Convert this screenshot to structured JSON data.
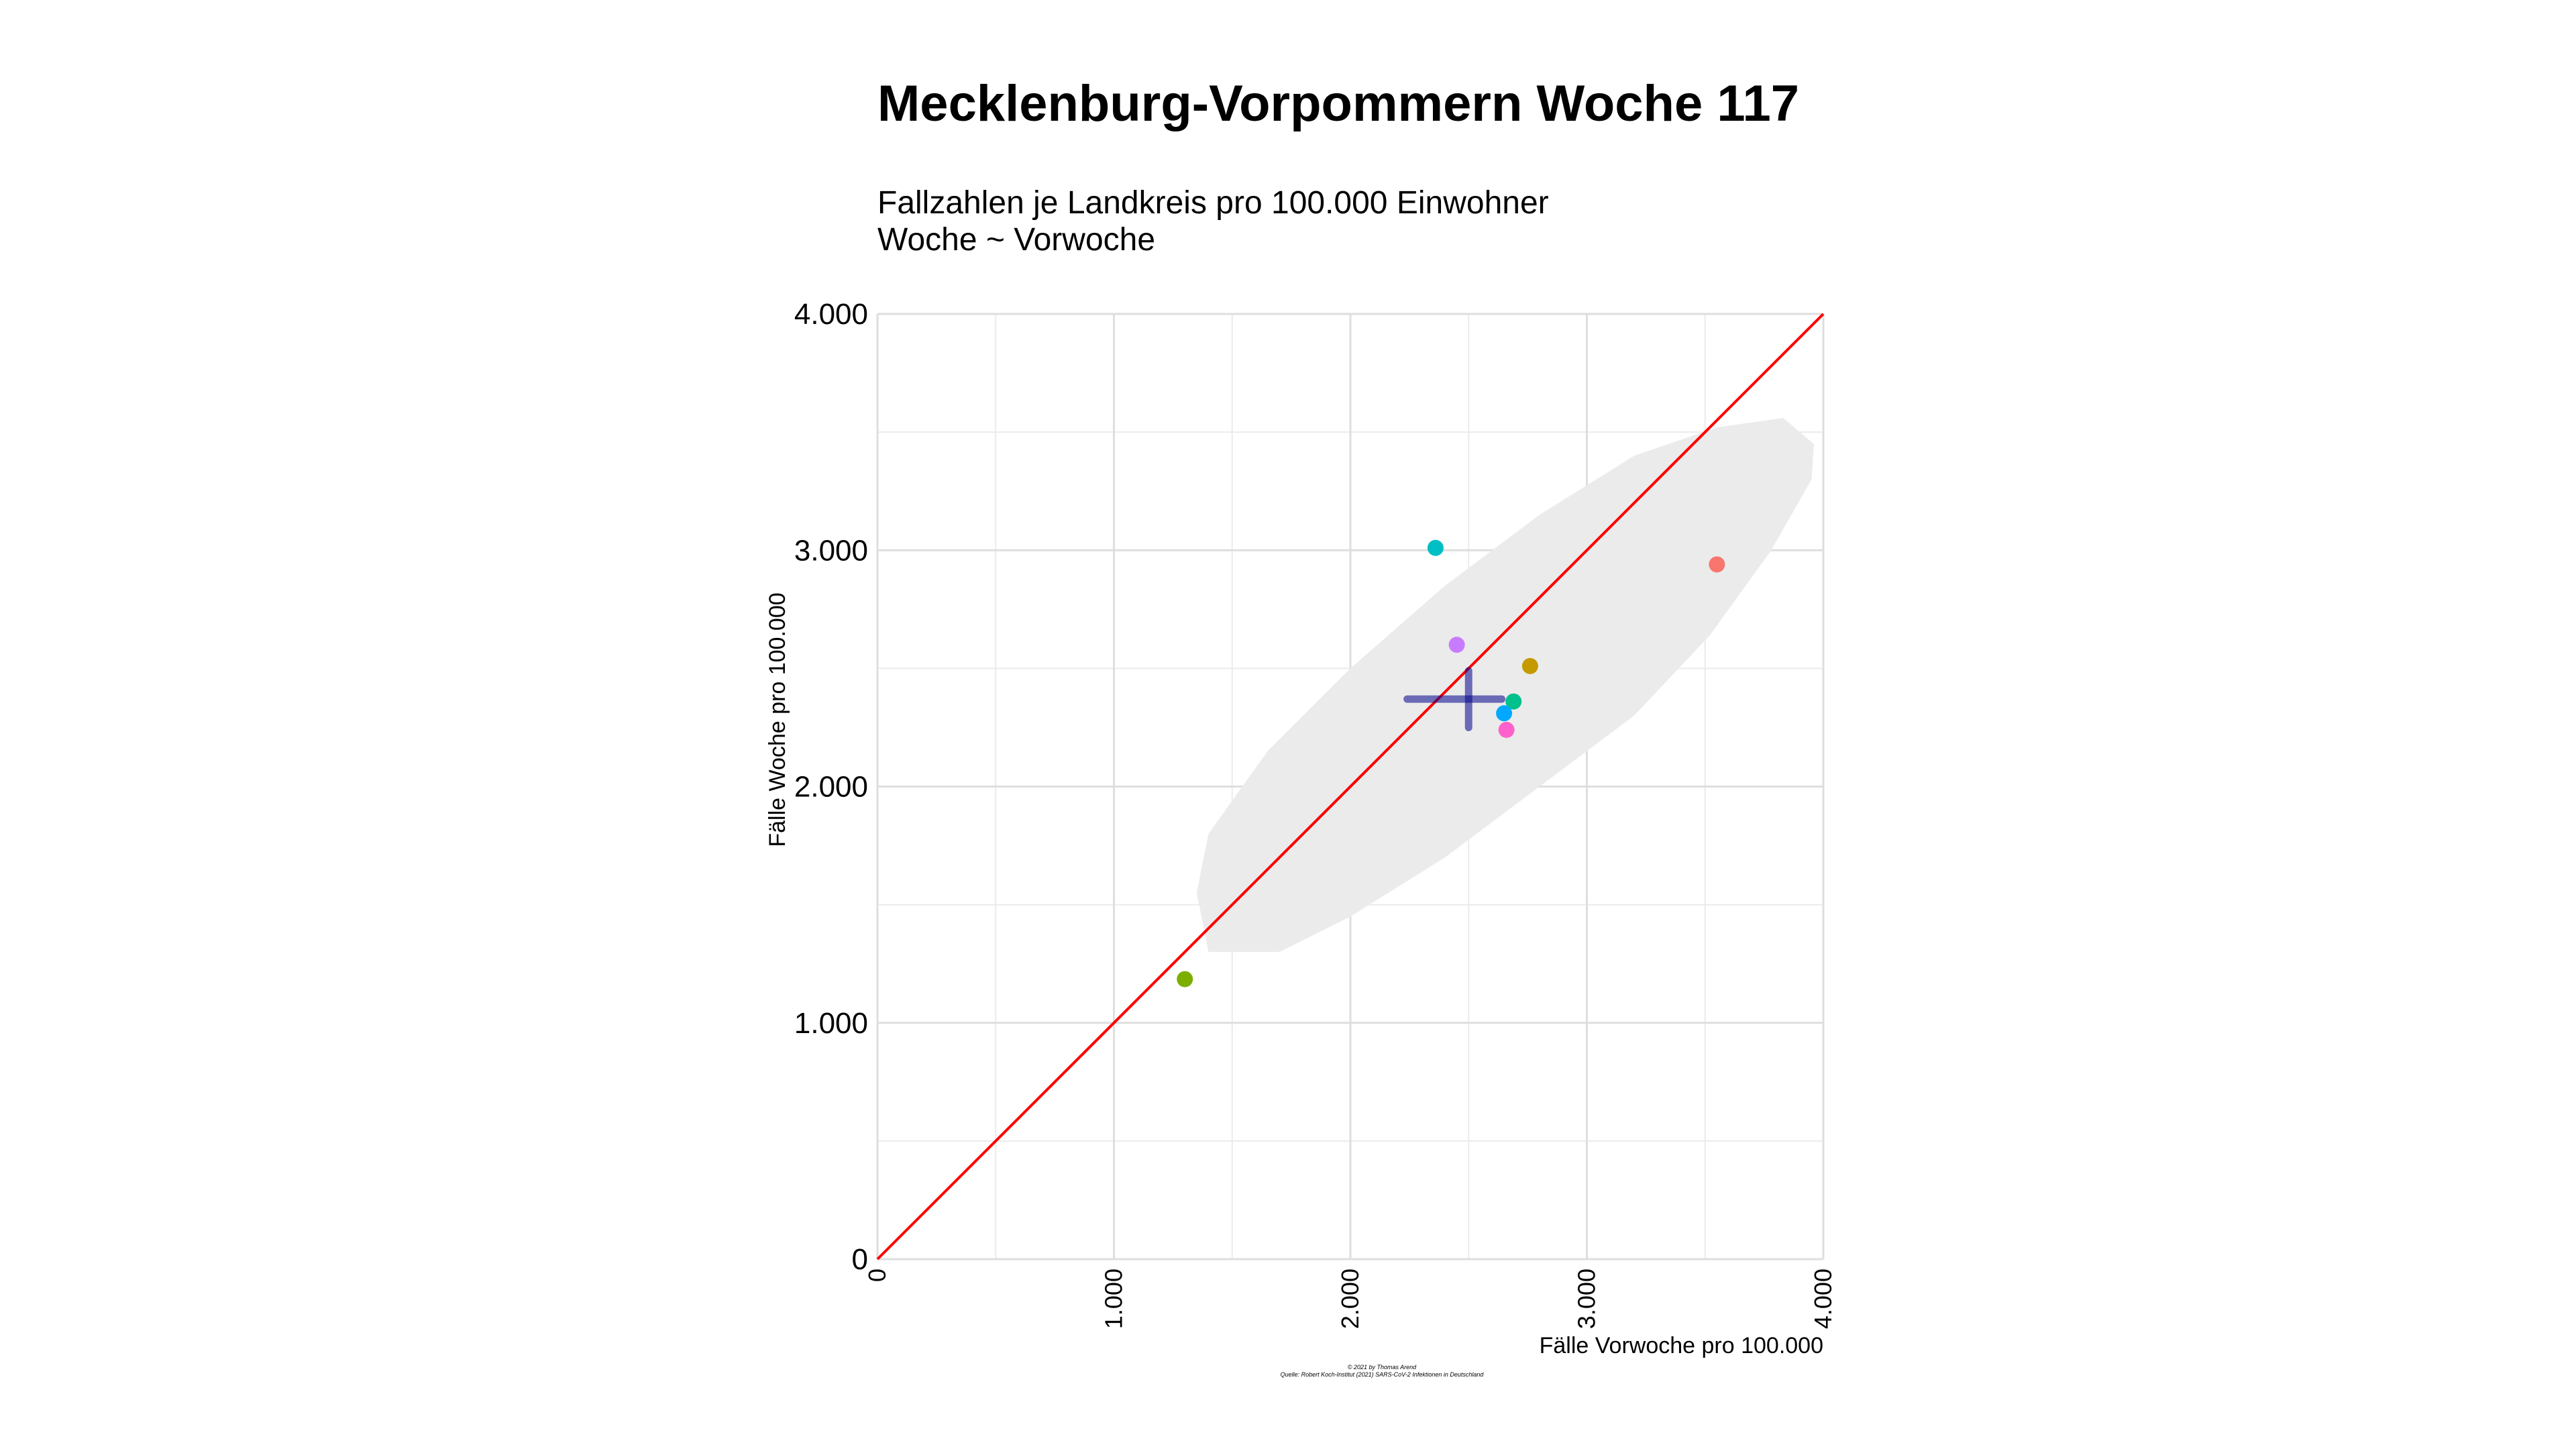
{
  "chart_data": {
    "type": "scatter",
    "title": "Mecklenburg-Vorpommern Woche 117",
    "subtitle_lines": [
      "Fallzahlen je Landkreis pro 100.000 Einwohner",
      "Woche ~ Vorwoche"
    ],
    "xlabel": "Fälle Vorwoche pro 100.000",
    "ylabel": "Fälle Woche pro 100.000",
    "xlim": [
      0,
      4000
    ],
    "ylim": [
      0,
      4000
    ],
    "x_ticks": [
      0,
      1000,
      2000,
      3000,
      4000
    ],
    "x_tick_labels": [
      "0",
      "1.000",
      "2.000",
      "3.000",
      "4.000"
    ],
    "y_ticks": [
      0,
      1000,
      2000,
      3000,
      4000
    ],
    "y_tick_labels": [
      "0",
      "1.000",
      "2.000",
      "3.000",
      "4.000"
    ],
    "minor_breaks": [
      500,
      1500,
      2500,
      3500
    ],
    "grid": true,
    "points": [
      {
        "x": 3550,
        "y": 2940,
        "color": "#F8766D"
      },
      {
        "x": 2760,
        "y": 2510,
        "color": "#C49A00"
      },
      {
        "x": 1300,
        "y": 1185,
        "color": "#7CAE00"
      },
      {
        "x": 2690,
        "y": 2360,
        "color": "#00C08B"
      },
      {
        "x": 2360,
        "y": 3010,
        "color": "#00BFC4"
      },
      {
        "x": 2650,
        "y": 2310,
        "color": "#00A9FF"
      },
      {
        "x": 2450,
        "y": 2600,
        "color": "#C77CFF"
      },
      {
        "x": 2660,
        "y": 2240,
        "color": "#FF61CC"
      }
    ],
    "reference_line": {
      "type": "identity",
      "from": [
        0,
        0
      ],
      "to": [
        4000,
        4000
      ],
      "color": "#FF0000"
    },
    "mean_marker": {
      "x": 2500,
      "y": 2370,
      "x_range": [
        2240,
        2640
      ],
      "y_range": [
        2250,
        2490
      ],
      "color": "#00008B"
    },
    "ellipse": {
      "center": [
        2550,
        2350
      ],
      "color": "#EBEBEB",
      "points": [
        [
          1400,
          1300
        ],
        [
          1700,
          1300
        ],
        [
          2000,
          1450
        ],
        [
          2400,
          1700
        ],
        [
          2800,
          2000
        ],
        [
          3200,
          2300
        ],
        [
          3520,
          2640
        ],
        [
          3780,
          3000
        ],
        [
          3950,
          3300
        ],
        [
          3960,
          3450
        ],
        [
          3830,
          3560
        ],
        [
          3550,
          3520
        ],
        [
          3200,
          3400
        ],
        [
          2800,
          3150
        ],
        [
          2400,
          2850
        ],
        [
          2000,
          2500
        ],
        [
          1650,
          2150
        ],
        [
          1400,
          1800
        ],
        [
          1350,
          1550
        ]
      ]
    },
    "caption_lines": [
      "© 2021 by Thomas Arend",
      "Quelle: Robert Koch-Institut (2021) SARS-CoV-2 Infektionen in Deutschland"
    ]
  }
}
